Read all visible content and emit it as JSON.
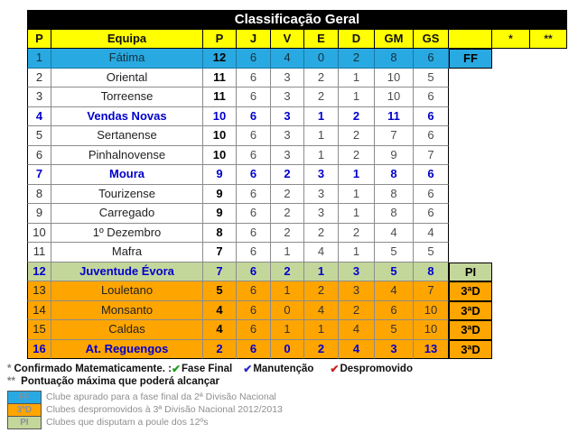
{
  "chart_data": {
    "type": "table",
    "title": "Classificação Geral",
    "header": {
      "pos": "P",
      "team": "Equipa",
      "pts": "P",
      "j": "J",
      "v": "V",
      "e": "E",
      "d": "D",
      "gm": "GM",
      "gs": "GS",
      "tag": "",
      "star1": "*",
      "star2": "**"
    },
    "rows": [
      {
        "pos": "1",
        "team": "Fátima",
        "pts": "12",
        "j": "6",
        "v": "4",
        "e": "0",
        "d": "2",
        "gm": "8",
        "gs": "6",
        "tag": "FF",
        "style": "ff"
      },
      {
        "pos": "2",
        "team": "Oriental",
        "pts": "11",
        "j": "6",
        "v": "3",
        "e": "2",
        "d": "1",
        "gm": "10",
        "gs": "5",
        "tag": "",
        "style": "plain"
      },
      {
        "pos": "3",
        "team": "Torreense",
        "pts": "11",
        "j": "6",
        "v": "3",
        "e": "2",
        "d": "1",
        "gm": "10",
        "gs": "6",
        "tag": "",
        "style": "plain"
      },
      {
        "pos": "4",
        "team": "Vendas Novas",
        "pts": "10",
        "j": "6",
        "v": "3",
        "e": "1",
        "d": "2",
        "gm": "11",
        "gs": "6",
        "tag": "",
        "style": "bluebold"
      },
      {
        "pos": "5",
        "team": "Sertanense",
        "pts": "10",
        "j": "6",
        "v": "3",
        "e": "1",
        "d": "2",
        "gm": "7",
        "gs": "6",
        "tag": "",
        "style": "plain"
      },
      {
        "pos": "6",
        "team": "Pinhalnovense",
        "pts": "10",
        "j": "6",
        "v": "3",
        "e": "1",
        "d": "2",
        "gm": "9",
        "gs": "7",
        "tag": "",
        "style": "plain"
      },
      {
        "pos": "7",
        "team": "Moura",
        "pts": "9",
        "j": "6",
        "v": "2",
        "e": "3",
        "d": "1",
        "gm": "8",
        "gs": "6",
        "tag": "",
        "style": "bluebold"
      },
      {
        "pos": "8",
        "team": "Tourizense",
        "pts": "9",
        "j": "6",
        "v": "2",
        "e": "3",
        "d": "1",
        "gm": "8",
        "gs": "6",
        "tag": "",
        "style": "plain"
      },
      {
        "pos": "9",
        "team": "Carregado",
        "pts": "9",
        "j": "6",
        "v": "2",
        "e": "3",
        "d": "1",
        "gm": "8",
        "gs": "6",
        "tag": "",
        "style": "plain"
      },
      {
        "pos": "10",
        "team": "1º Dezembro",
        "pts": "8",
        "j": "6",
        "v": "2",
        "e": "2",
        "d": "2",
        "gm": "4",
        "gs": "4",
        "tag": "",
        "style": "plain"
      },
      {
        "pos": "11",
        "team": "Mafra",
        "pts": "7",
        "j": "6",
        "v": "1",
        "e": "4",
        "d": "1",
        "gm": "5",
        "gs": "5",
        "tag": "",
        "style": "plain"
      },
      {
        "pos": "12",
        "team": "Juventude Évora",
        "pts": "7",
        "j": "6",
        "v": "2",
        "e": "1",
        "d": "3",
        "gm": "5",
        "gs": "8",
        "tag": "PI",
        "style": "green"
      },
      {
        "pos": "13",
        "team": "Louletano",
        "pts": "5",
        "j": "6",
        "v": "1",
        "e": "2",
        "d": "3",
        "gm": "4",
        "gs": "7",
        "tag": "3ªD",
        "style": "orange"
      },
      {
        "pos": "14",
        "team": "Monsanto",
        "pts": "4",
        "j": "6",
        "v": "0",
        "e": "4",
        "d": "2",
        "gm": "6",
        "gs": "10",
        "tag": "3ªD",
        "style": "orange"
      },
      {
        "pos": "15",
        "team": "Caldas",
        "pts": "4",
        "j": "6",
        "v": "1",
        "e": "1",
        "d": "4",
        "gm": "5",
        "gs": "10",
        "tag": "3ªD",
        "style": "orange"
      },
      {
        "pos": "16",
        "team": "At. Reguengos",
        "pts": "2",
        "j": "6",
        "v": "0",
        "e": "2",
        "d": "4",
        "gm": "3",
        "gs": "13",
        "tag": "3ªD",
        "style": "orangeblue"
      }
    ]
  },
  "footnotes": {
    "star1": "*",
    "line1_text": "Confirmado Matematicamente. :",
    "checks": [
      {
        "label": "Fase Final",
        "color": "#1e9b1e"
      },
      {
        "label": "Manutenção",
        "color": "#2828cf"
      },
      {
        "label": "Despromovido",
        "color": "#cf2020"
      }
    ],
    "star2": "**",
    "line2_text": "Pontuação máxima que poderá alcançar"
  },
  "legend": [
    {
      "tag": "FF",
      "color": "#29a9e1",
      "text": "Clube apurado para a fase final da 2ª Divisão Nacional"
    },
    {
      "tag": "3ªD",
      "color": "#ffa500",
      "text": "Clubes despromovidos à 3ª Divisão Nacional 2012/2013"
    },
    {
      "tag": "PI",
      "color": "#c4d79b",
      "text": "Clubes que disputam a poule dos 12ºs"
    }
  ],
  "colors": {
    "header_bg": "#ffff00",
    "title_bg": "#000000",
    "title_text": "#ffffff",
    "blue_row": "#29a9e1",
    "green_row": "#c4d79b",
    "orange_row": "#ffa500",
    "highlight_text": "#0000cc"
  }
}
